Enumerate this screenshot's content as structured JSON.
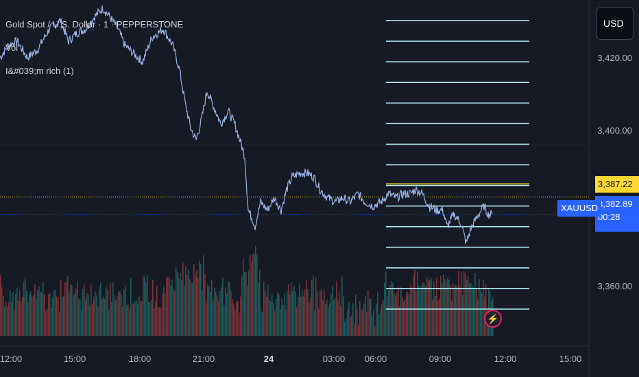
{
  "legend": {
    "title": "Gold Spot / U.S. Dollar · 1 · PEPPERSTONE",
    "volume_label": "Vol",
    "indicator_label": "I&#039;m rich (1)"
  },
  "header": {
    "currency": "USD"
  },
  "price_tags": {
    "yellow_price": "3,387.22",
    "symbol": "XAUUSD",
    "current_price": "3,382.89",
    "countdown": "00:28"
  },
  "colors": {
    "background": "#161a25",
    "price_line": "#9bb4e8",
    "indicator_line": "#b2ebf2",
    "yellow_line": "#fdd835",
    "current_line": "#2962ff",
    "vol_up": "#26a69a",
    "vol_down": "#ef5350",
    "accent": "#2962ff"
  },
  "chart_data": {
    "type": "line",
    "y_axis": {
      "range": [
        3351,
        3435
      ],
      "tick_labels": [
        "3,420.00",
        "3,400.00",
        "3,360.00"
      ],
      "tick_values": [
        3420,
        3400,
        3360
      ]
    },
    "x_axis": {
      "tick_labels": [
        "12:00",
        "15:00",
        "18:00",
        "21:00",
        "24",
        "03:00",
        "06:00",
        "09:00",
        "12:00",
        "15:00"
      ],
      "bold_label": "24"
    },
    "series": [
      {
        "points": [
          [
            0,
            3421
          ],
          [
            12,
            3424
          ],
          [
            25,
            3425
          ],
          [
            40,
            3421
          ],
          [
            55,
            3423
          ],
          [
            72,
            3428
          ],
          [
            88,
            3430
          ],
          [
            100,
            3425
          ],
          [
            112,
            3427
          ],
          [
            125,
            3428
          ],
          [
            138,
            3431
          ],
          [
            150,
            3433
          ],
          [
            160,
            3431
          ],
          [
            172,
            3428
          ],
          [
            182,
            3424
          ],
          [
            195,
            3422
          ],
          [
            208,
            3420
          ],
          [
            222,
            3426
          ],
          [
            238,
            3428
          ],
          [
            252,
            3424
          ],
          [
            262,
            3418
          ],
          [
            270,
            3410
          ],
          [
            278,
            3404
          ],
          [
            286,
            3401
          ],
          [
            294,
            3406
          ],
          [
            302,
            3413
          ],
          [
            312,
            3409
          ],
          [
            322,
            3405
          ],
          [
            333,
            3408
          ],
          [
            342,
            3405
          ],
          [
            350,
            3401
          ],
          [
            357,
            3397
          ],
          [
            362,
            3384
          ],
          [
            368,
            3382
          ],
          [
            372,
            3380
          ],
          [
            380,
            3386
          ],
          [
            390,
            3384
          ],
          [
            400,
            3387
          ],
          [
            410,
            3384
          ],
          [
            418,
            3389
          ],
          [
            426,
            3392
          ],
          [
            437,
            3393
          ],
          [
            448,
            3393
          ],
          [
            458,
            3392
          ],
          [
            467,
            3389
          ],
          [
            478,
            3387
          ],
          [
            490,
            3386
          ],
          [
            500,
            3387
          ],
          [
            511,
            3386
          ],
          [
            522,
            3388
          ],
          [
            532,
            3386
          ],
          [
            544,
            3385
          ],
          [
            556,
            3386
          ],
          [
            566,
            3388
          ],
          [
            578,
            3387
          ],
          [
            588,
            3388
          ],
          [
            598,
            3388
          ],
          [
            607,
            3389
          ],
          [
            616,
            3388
          ],
          [
            626,
            3385
          ],
          [
            636,
            3384
          ],
          [
            646,
            3384
          ],
          [
            652,
            3380
          ],
          [
            662,
            3383
          ],
          [
            672,
            3381
          ],
          [
            680,
            3376
          ],
          [
            688,
            3380
          ],
          [
            698,
            3383
          ],
          [
            706,
            3385
          ],
          [
            712,
            3383
          ],
          [
            718,
            3383
          ]
        ]
      }
    ],
    "indicator_levels": [
      3430,
      3425,
      3420,
      3415,
      3410,
      3405,
      3400,
      3395,
      3390,
      3387.22,
      3385,
      3380,
      3375,
      3370,
      3365,
      3360,
      3355,
      3350
    ],
    "yellow_level": 3387.22,
    "current_level": 3382.89,
    "volume": {
      "seed": 17
    }
  }
}
